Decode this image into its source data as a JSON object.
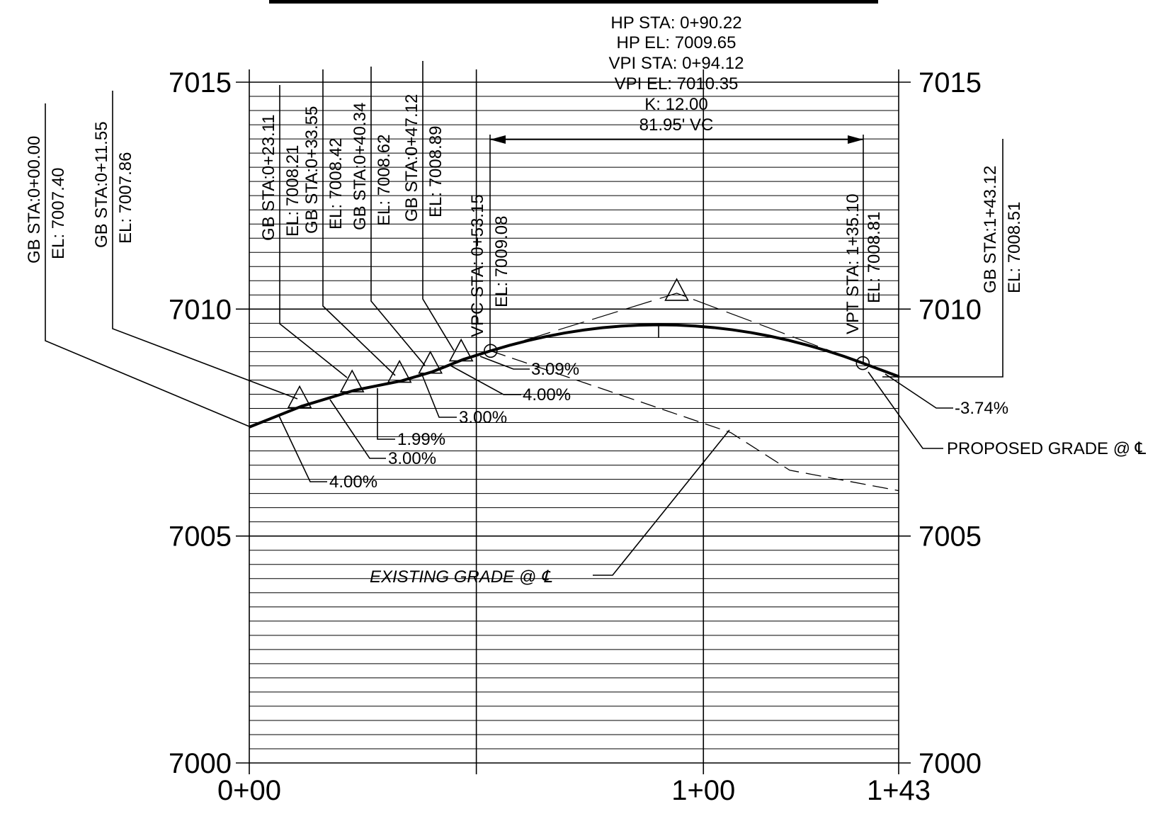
{
  "chart_data": {
    "type": "profile",
    "y_ticks": [
      "7000",
      "7005",
      "7010",
      "7015"
    ],
    "x_ticks": [
      "0+00",
      "1+00",
      "1+43"
    ],
    "x_range": [
      0,
      143
    ],
    "y_range": [
      7000,
      7015
    ],
    "grid": true,
    "hp": {
      "line1": "HP STA: 0+90.22",
      "line2": "HP EL: 7009.65",
      "line3": "VPI STA: 0+94.12",
      "line4": "VPI EL: 7010.35",
      "line5": "K: 12.00",
      "line6": "81.95' VC",
      "vpi_sta": 94.12,
      "vpi_el": 7010.35
    },
    "grade_breaks": [
      {
        "sta": 0.0,
        "el": 7007.4,
        "sta_label": "GB STA:0+00.00",
        "el_label": "EL: 7007.40"
      },
      {
        "sta": 11.55,
        "el": 7007.86,
        "sta_label": "GB STA:0+11.55",
        "el_label": "EL: 7007.86"
      },
      {
        "sta": 23.11,
        "el": 7008.21,
        "sta_label": "GB STA:0+23.11",
        "el_label": "EL: 7008.21"
      },
      {
        "sta": 33.55,
        "el": 7008.42,
        "sta_label": "GB STA:0+33.55",
        "el_label": "EL: 7008.42"
      },
      {
        "sta": 40.34,
        "el": 7008.62,
        "sta_label": "GB STA:0+40.34",
        "el_label": "EL: 7008.62"
      },
      {
        "sta": 47.12,
        "el": 7008.89,
        "sta_label": "GB STA:0+47.12",
        "el_label": "EL: 7008.89"
      },
      {
        "sta": 143.12,
        "el": 7008.51,
        "sta_label": "GB STA:1+43.12",
        "el_label": "EL: 7008.51"
      }
    ],
    "vpc": {
      "sta": 53.15,
      "el": 7009.08,
      "sta_label": "VPC STA: 0+53.15",
      "el_label": "EL: 7009.08"
    },
    "vpt": {
      "sta": 135.1,
      "el": 7008.81,
      "sta_label": "VPT STA: 1+35.10",
      "el_label": "EL: 7008.81"
    },
    "slopes": [
      "4.00%",
      "3.00%",
      "1.99%",
      "3.00%",
      "4.00%",
      "3.09%",
      "-3.74%"
    ],
    "proposed_label": "PROPOSED GRADE @ ℄",
    "existing_label": "EXISTING GRADE @ ℄",
    "existing_grade": [
      {
        "sta": 53.15,
        "el": 7009.08
      },
      {
        "sta": 79,
        "el": 7008.2
      },
      {
        "sta": 106,
        "el": 7007.28
      },
      {
        "sta": 119,
        "el": 7006.45
      },
      {
        "sta": 143,
        "el": 7006.0
      }
    ]
  }
}
